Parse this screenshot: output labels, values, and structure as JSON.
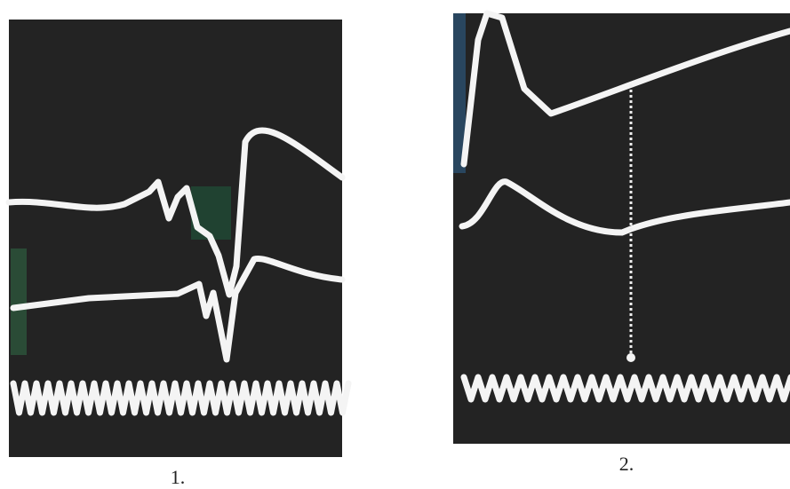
{
  "panels": [
    {
      "label": "1."
    },
    {
      "label": "2."
    }
  ]
}
